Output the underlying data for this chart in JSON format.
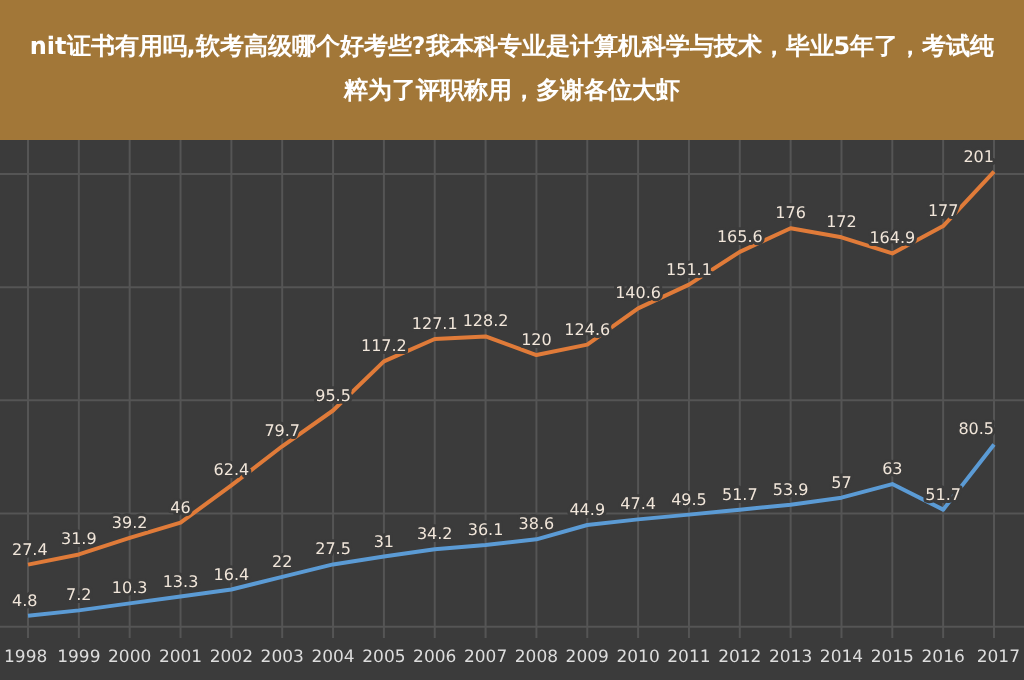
{
  "chart_data": {
    "type": "line",
    "title": "nit证书有用吗,软考高级哪个好考些?我本科专业是计算机科学与技术，毕业5年了，考试纯粹为了评职称用，多谢各位大虾",
    "categories": [
      "1998",
      "1999",
      "2000",
      "2001",
      "2002",
      "2003",
      "2004",
      "2005",
      "2006",
      "2007",
      "2008",
      "2009",
      "2010",
      "2011",
      "2012",
      "2013",
      "2014",
      "2015",
      "2016",
      "2017"
    ],
    "series": [
      {
        "color": "#e07b39",
        "values": [
          27.4,
          31.9,
          39.2,
          46,
          62.4,
          79.7,
          95.5,
          117.2,
          127.1,
          128.2,
          120,
          124.6,
          140.6,
          151.1,
          165.6,
          176,
          172,
          164.9,
          177,
          201
        ]
      },
      {
        "color": "#5b9bd5",
        "values": [
          4.8,
          7.2,
          10.3,
          13.3,
          16.4,
          22,
          27.5,
          31,
          34.2,
          36.1,
          38.6,
          44.9,
          47.4,
          49.5,
          51.7,
          53.9,
          57,
          63,
          51.7,
          80.5
        ]
      }
    ],
    "ylim": [
      -5,
      215
    ],
    "yticks": [
      {
        "value": 0,
        "label": null
      },
      {
        "value": 50,
        "label": null
      },
      {
        "value": 100,
        "label": null
      },
      {
        "value": 150,
        "label": null
      },
      {
        "value": 200,
        "label": null
      }
    ],
    "tick_labels": "x",
    "grid": true,
    "data_labels": true,
    "marker": "none",
    "line_style": "solid"
  }
}
